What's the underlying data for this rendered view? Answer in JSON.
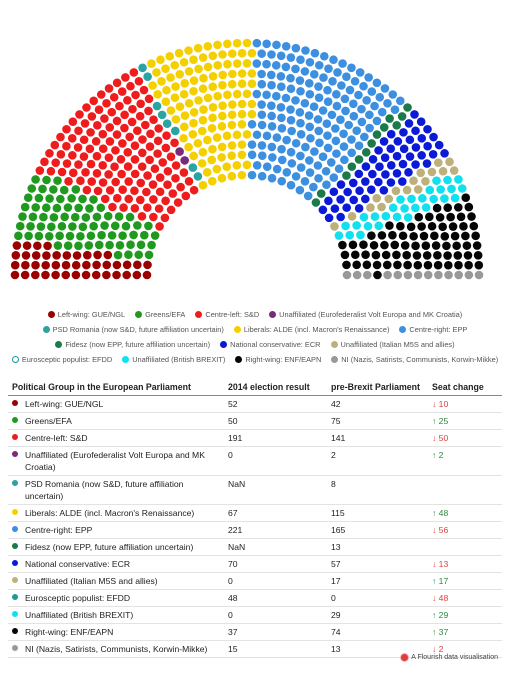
{
  "chart_data": {
    "type": "parliament",
    "total_seats": 751,
    "legend_markers": {
      "hollow": [
        "efdd"
      ]
    },
    "seat_order": [
      "gue",
      "greens",
      "sd",
      "volt",
      "psd",
      "alde",
      "epp",
      "fidesz",
      "ecr",
      "m5s",
      "efdd",
      "brexit",
      "enf",
      "ni"
    ],
    "parties": [
      {
        "id": "gue",
        "label": "Left-wing: GUE/NGL",
        "color": "#9b0000",
        "result_2014": "52",
        "pre_brexit": 42,
        "change": "↓ 10",
        "direction": "down"
      },
      {
        "id": "greens",
        "label": "Greens/EFA",
        "color": "#1f9a1f",
        "result_2014": "50",
        "pre_brexit": 75,
        "change": "↑ 25",
        "direction": "up"
      },
      {
        "id": "sd",
        "label": "Centre-left: S&D",
        "color": "#ee1c1c",
        "result_2014": "191",
        "pre_brexit": 141,
        "change": "↓ 50",
        "direction": "down"
      },
      {
        "id": "volt",
        "label": "Unaffiliated (Eurofederalist Volt Europa and MK Croatia)",
        "color": "#7b2a7b",
        "result_2014": "0",
        "pre_brexit": 2,
        "change": "↑ 2",
        "direction": "up"
      },
      {
        "id": "psd",
        "label": "PSD Romania (now S&D, future affiliation uncertain)",
        "color": "#2aa3a3",
        "result_2014": "NaN",
        "pre_brexit": 8,
        "change": "",
        "direction": "none"
      },
      {
        "id": "alde",
        "label": "Liberals: ALDE (incl. Macron's Renaissance)",
        "color": "#f5d000",
        "result_2014": "67",
        "pre_brexit": 115,
        "change": "↑ 48",
        "direction": "up"
      },
      {
        "id": "epp",
        "label": "Centre-right: EPP",
        "color": "#3d8fe0",
        "result_2014": "221",
        "pre_brexit": 165,
        "change": "↓ 56",
        "direction": "down"
      },
      {
        "id": "fidesz",
        "label": "Fidesz (now EPP, future affiliation uncertain)",
        "color": "#1a7a4a",
        "result_2014": "NaN",
        "pre_brexit": 13,
        "change": "",
        "direction": "none"
      },
      {
        "id": "ecr",
        "label": "National conservative: ECR",
        "color": "#0a1ad6",
        "result_2014": "70",
        "pre_brexit": 57,
        "change": "↓ 13",
        "direction": "down"
      },
      {
        "id": "m5s",
        "label": "Unaffiliated (Italian M5S and allies)",
        "color": "#bdb07a",
        "result_2014": "0",
        "pre_brexit": 17,
        "change": "↑ 17",
        "direction": "up"
      },
      {
        "id": "efdd",
        "label": "Eurosceptic populist: EFDD",
        "color": "#1e9a9a",
        "result_2014": "48",
        "pre_brexit": 0,
        "change": "↓ 48",
        "direction": "down"
      },
      {
        "id": "brexit",
        "label": "Unaffiliated (British BREXIT)",
        "color": "#11e0ee",
        "result_2014": "0",
        "pre_brexit": 29,
        "change": "↑ 29",
        "direction": "up"
      },
      {
        "id": "enf",
        "label": "Right-wing: ENF/EAPN",
        "color": "#050505",
        "result_2014": "37",
        "pre_brexit": 74,
        "change": "↑ 37",
        "direction": "up"
      },
      {
        "id": "ni",
        "label": "NI (Nazis, Satirists, Communists, Korwin-Mikke)",
        "color": "#999999",
        "result_2014": "15",
        "pre_brexit": 13,
        "change": "↓ 2",
        "direction": "down"
      }
    ],
    "legend_order": [
      "gue",
      "greens",
      "sd",
      "volt",
      "psd",
      "alde",
      "epp",
      "fidesz",
      "ecr",
      "m5s",
      "efdd",
      "brexit",
      "enf",
      "ni"
    ]
  },
  "table": {
    "headers": [
      "Political Group in the European Parliament",
      "2014 election result",
      "pre-Brexit Parliament",
      "Seat change"
    ]
  },
  "footer": {
    "text": "A Flourish data visualisation"
  }
}
